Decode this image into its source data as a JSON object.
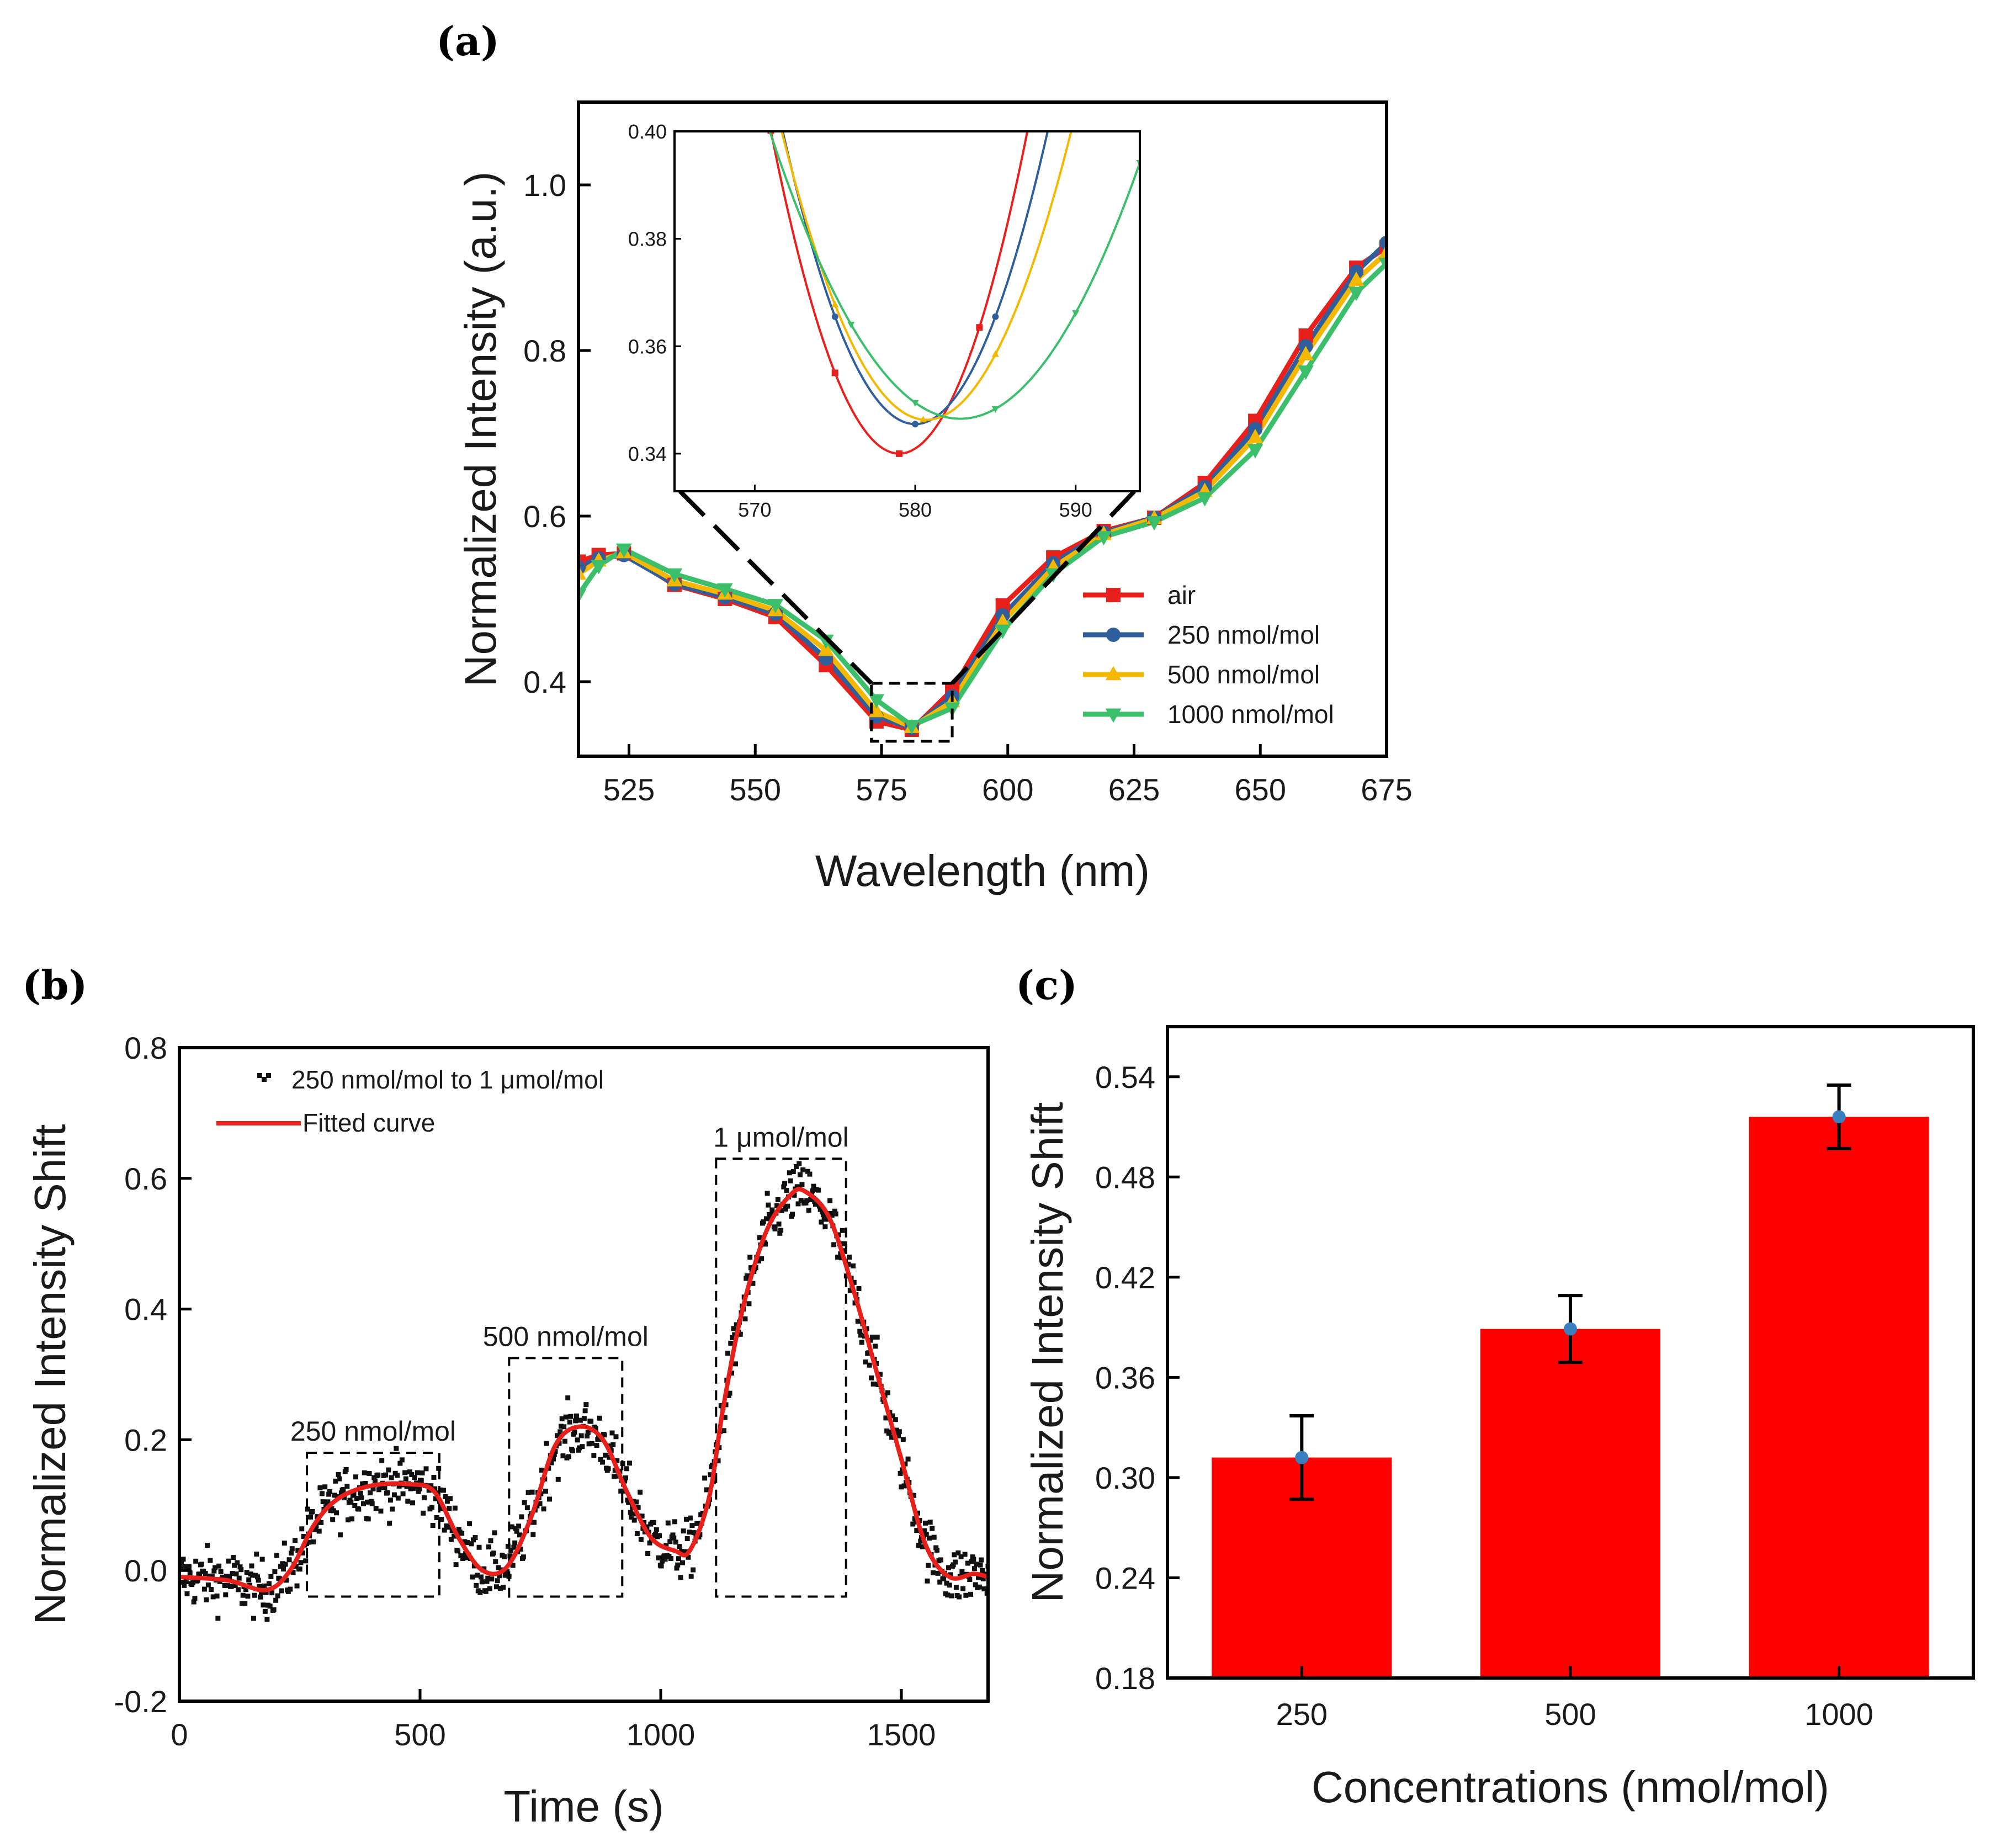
{
  "chart_data": [
    {
      "panel": "(a)",
      "type": "line",
      "title": "",
      "xlabel": "Wavelength (nm)",
      "ylabel": "Normalized Intensity (a.u.)",
      "xlim": [
        515,
        675
      ],
      "ylim": [
        0.31,
        1.1
      ],
      "xticks": [
        "525",
        "550",
        "575",
        "600",
        "625",
        "650",
        "675"
      ],
      "yticks": [
        "0.4",
        "0.6",
        "0.8",
        "1.0"
      ],
      "legend_position": "bottom-right",
      "x": [
        515,
        519,
        524,
        534,
        544,
        554,
        564,
        574,
        581,
        589,
        599,
        609,
        619,
        629,
        639,
        649,
        659,
        669,
        675
      ],
      "series": [
        {
          "name": "air",
          "color": "#e8201c",
          "marker": "square",
          "values": [
            0.545,
            0.553,
            0.555,
            0.517,
            0.5,
            0.478,
            0.42,
            0.352,
            0.342,
            0.39,
            0.492,
            0.55,
            0.582,
            0.598,
            0.64,
            0.715,
            0.818,
            0.9,
            0.925
          ]
        },
        {
          "name": "250 nmol/mol",
          "color": "#2e5f9c",
          "marker": "circle",
          "values": [
            0.538,
            0.549,
            0.553,
            0.518,
            0.502,
            0.482,
            0.428,
            0.358,
            0.344,
            0.382,
            0.48,
            0.543,
            0.58,
            0.598,
            0.635,
            0.705,
            0.805,
            0.895,
            0.93
          ]
        },
        {
          "name": "500 nmol/mol",
          "color": "#f5b800",
          "marker": "triangle-up",
          "values": [
            0.53,
            0.546,
            0.556,
            0.522,
            0.506,
            0.486,
            0.438,
            0.364,
            0.345,
            0.376,
            0.472,
            0.538,
            0.578,
            0.597,
            0.63,
            0.695,
            0.795,
            0.885,
            0.918
          ]
        },
        {
          "name": "1000 nmol/mol",
          "color": "#3bbf6a",
          "marker": "triangle-down",
          "values": [
            0.505,
            0.54,
            0.56,
            0.53,
            0.512,
            0.493,
            0.45,
            0.378,
            0.347,
            0.368,
            0.462,
            0.53,
            0.575,
            0.593,
            0.622,
            0.68,
            0.775,
            0.87,
            0.905
          ]
        }
      ],
      "inset": {
        "xlim": [
          565,
          594
        ],
        "ylim": [
          0.333,
          0.4
        ],
        "xticks": [
          "570",
          "580",
          "590"
        ],
        "yticks": [
          "0.34",
          "0.36",
          "0.38",
          "0.40"
        ],
        "zoom_box": {
          "x": [
            573,
            589
          ],
          "y": [
            0.328,
            0.398
          ]
        },
        "series": [
          {
            "name": "air",
            "center": 579.0,
            "minimum": 0.34,
            "k": 0.00094,
            "markers": [
              571,
              575,
              579,
              584,
              589
            ]
          },
          {
            "name": "250 nmol/mol",
            "center": 580.0,
            "minimum": 0.3455,
            "k": 0.0008,
            "markers": [
              569.5,
              575,
              580,
              585,
              589.5
            ]
          },
          {
            "name": "500 nmol/mol",
            "center": 580.7,
            "minimum": 0.3463,
            "k": 0.00066,
            "markers": [
              570,
              575,
              580.5,
              585,
              590
            ]
          },
          {
            "name": "1000 nmol/mol",
            "center": 582.8,
            "minimum": 0.3465,
            "k": 0.00038,
            "markers": [
              576,
              580,
              585,
              590,
              594
            ]
          }
        ]
      }
    },
    {
      "panel": "(b)",
      "type": "scatter",
      "title": "",
      "xlabel": "Time (s)",
      "ylabel": "Normalized Intensity Shift",
      "xlim": [
        0,
        1680
      ],
      "ylim": [
        -0.2,
        0.8
      ],
      "xticks": [
        "0",
        "500",
        "1000",
        "1500"
      ],
      "yticks": [
        "-0.2",
        "0.0",
        "0.2",
        "0.4",
        "0.6",
        "0.8"
      ],
      "legend": [
        "250 nmol/mol to 1 μmol/mol",
        "Fitted curve"
      ],
      "legend_position": "top-left",
      "fitted_curve": {
        "color": "#e8201c",
        "x": [
          0,
          100,
          180,
          230,
          280,
          330,
          400,
          480,
          530,
          580,
          630,
          680,
          730,
          780,
          830,
          880,
          930,
          980,
          1030,
          1060,
          1100,
          1130,
          1170,
          1220,
          1270,
          1300,
          1350,
          1400,
          1450,
          1500,
          1550,
          1600,
          1650,
          1680
        ],
        "y": [
          -0.01,
          -0.015,
          -0.03,
          0.0,
          0.07,
          0.11,
          0.13,
          0.132,
          0.12,
          0.05,
          0.0,
          0.005,
          0.08,
          0.19,
          0.22,
          0.2,
          0.12,
          0.05,
          0.03,
          0.03,
          0.11,
          0.25,
          0.4,
          0.52,
          0.575,
          0.58,
          0.54,
          0.43,
          0.3,
          0.17,
          0.04,
          -0.01,
          -0.005,
          -0.01
        ]
      },
      "scatter": {
        "count": 840,
        "noise": 0.028,
        "color": "#111111"
      },
      "boxes": [
        {
          "label": "250 nmol/mol",
          "x": [
            265,
            540
          ],
          "y": [
            -0.04,
            0.18
          ]
        },
        {
          "label": "500 nmol/mol",
          "x": [
            685,
            920
          ],
          "y": [
            -0.04,
            0.325
          ]
        },
        {
          "label": "1 μmol/mol",
          "x": [
            1115,
            1385
          ],
          "y": [
            -0.04,
            0.63
          ]
        }
      ]
    },
    {
      "panel": "(c)",
      "type": "bar",
      "title": "",
      "xlabel": "Concentrations (nmol/mol)",
      "ylabel": "Normalized Intensity Shift",
      "categories": [
        "250",
        "500",
        "1000"
      ],
      "values": [
        0.312,
        0.389,
        0.516
      ],
      "errors": [
        0.025,
        0.02,
        0.019
      ],
      "ylim": [
        0.18,
        0.57
      ],
      "yticks": [
        "0.18",
        "0.24",
        "0.30",
        "0.36",
        "0.42",
        "0.48",
        "0.54"
      ],
      "bar_color": "#ff0000",
      "point_color": "#3a7fc0"
    }
  ]
}
